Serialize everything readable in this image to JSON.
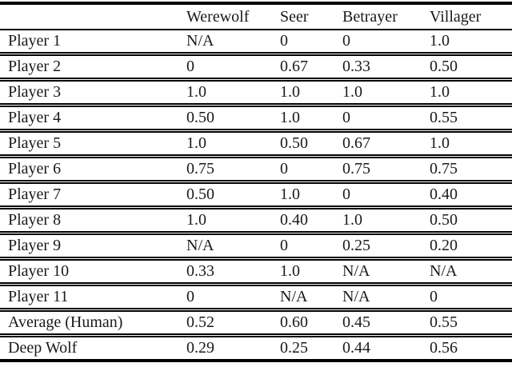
{
  "table": {
    "columns": [
      "",
      "Werewolf",
      "Seer",
      "Betrayer",
      "Villager"
    ],
    "rows": [
      {
        "label": "Player 1",
        "values": [
          "N/A",
          "0",
          "0",
          "1.0"
        ]
      },
      {
        "label": "Player 2",
        "values": [
          "0",
          "0.67",
          "0.33",
          "0.50"
        ]
      },
      {
        "label": "Player 3",
        "values": [
          "1.0",
          "1.0",
          "1.0",
          "1.0"
        ]
      },
      {
        "label": "Player 4",
        "values": [
          "0.50",
          "1.0",
          "0",
          "0.55"
        ]
      },
      {
        "label": "Player 5",
        "values": [
          "1.0",
          "0.50",
          "0.67",
          "1.0"
        ]
      },
      {
        "label": "Player 6",
        "values": [
          "0.75",
          "0",
          "0.75",
          "0.75"
        ]
      },
      {
        "label": "Player 7",
        "values": [
          "0.50",
          "1.0",
          "0",
          "0.40"
        ]
      },
      {
        "label": "Player 8",
        "values": [
          "1.0",
          "0.40",
          "1.0",
          "0.50"
        ]
      },
      {
        "label": "Player 9",
        "values": [
          "N/A",
          "0",
          "0.25",
          "0.20"
        ]
      },
      {
        "label": "Player 10",
        "values": [
          "0.33",
          "1.0",
          "N/A",
          "N/A"
        ]
      },
      {
        "label": "Player 11",
        "values": [
          "0",
          "N/A",
          "N/A",
          "0"
        ]
      },
      {
        "label": "Average (Human)",
        "values": [
          "0.52",
          "0.60",
          "0.45",
          "0.55"
        ]
      },
      {
        "label": "Deep Wolf",
        "values": [
          "0.29",
          "0.25",
          "0.44",
          "0.56"
        ]
      }
    ]
  },
  "colors": {
    "rule": "#000000",
    "text": "#1a1a1a",
    "background": "#ffffff"
  }
}
